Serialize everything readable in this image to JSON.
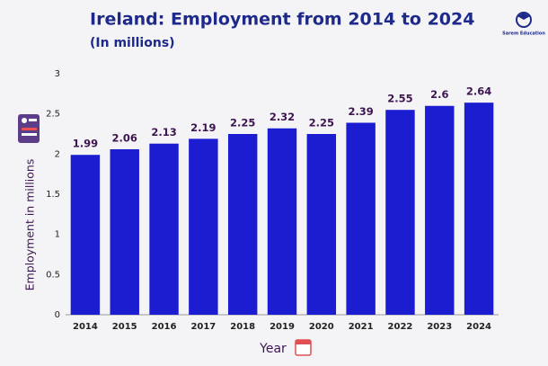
{
  "chart_data": {
    "type": "bar",
    "title": "Ireland: Employment from 2014 to 2024",
    "subtitle": "(In millions)",
    "brand": "Sarem Education",
    "x_label": "Year",
    "y_label": "Employment in millions",
    "categories": [
      "2014",
      "2015",
      "2016",
      "2017",
      "2018",
      "2019",
      "2020",
      "2021",
      "2022",
      "2023",
      "2024"
    ],
    "values": [
      1.99,
      2.06,
      2.13,
      2.19,
      2.25,
      2.32,
      2.25,
      2.39,
      2.55,
      2.6,
      2.64
    ],
    "color": "#1c1cd0",
    "ylim": [
      0,
      3
    ],
    "yticks": [
      0,
      0.5,
      1,
      1.5,
      2,
      2.5,
      3
    ],
    "grid": false
  }
}
